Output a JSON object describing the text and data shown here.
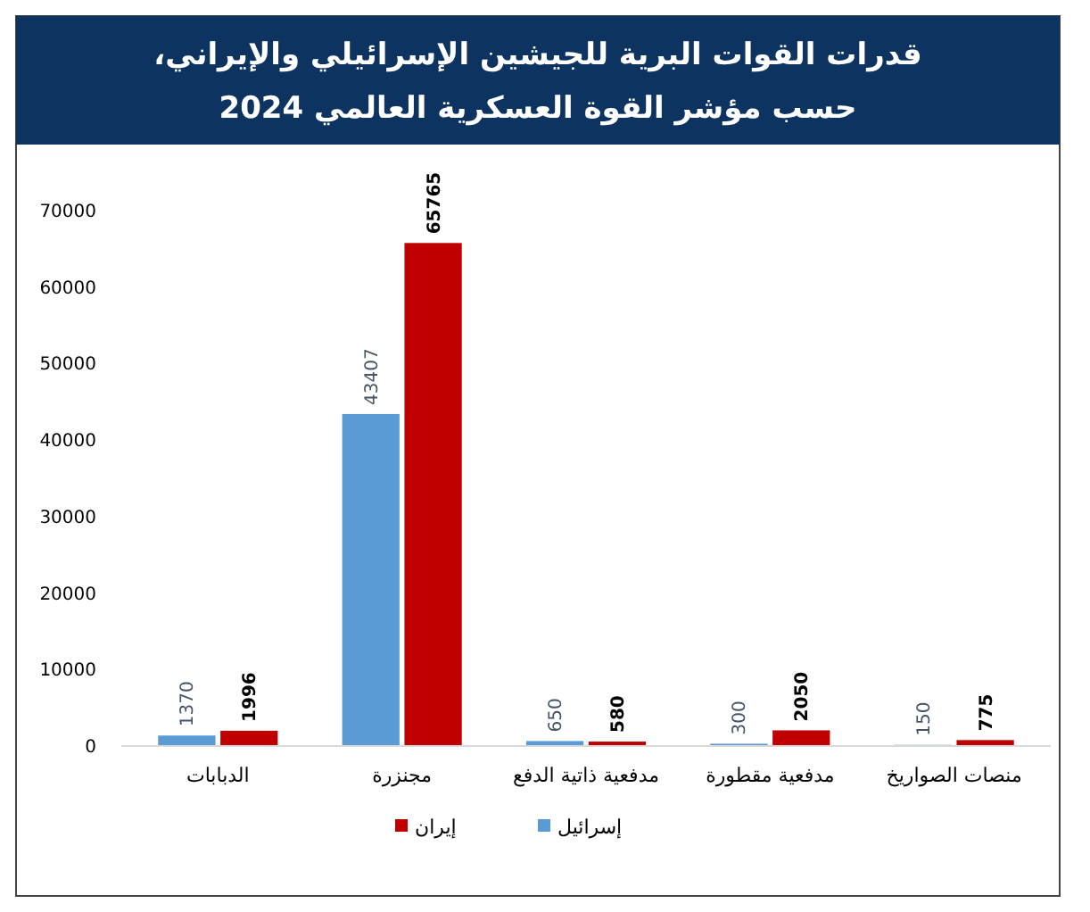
{
  "chart_data": {
    "type": "bar",
    "title": "قدرات القوات البرية للجيشين الإسرائيلي والإيراني،\nحسب مؤشر القوة العسكرية العالمي 2024",
    "categories": [
      "الدبابات",
      "مجنزرة",
      "مدفعية ذاتية الدفع",
      "مدفعية مقطورة",
      "منصات الصواريخ"
    ],
    "series": [
      {
        "name": "إسرائيل",
        "color": "#5b9bd5",
        "values": [
          1370,
          43407,
          650,
          300,
          150
        ]
      },
      {
        "name": "إيران",
        "color": "#c00000",
        "values": [
          1996,
          65765,
          580,
          2050,
          775
        ]
      }
    ],
    "ylim": [
      0,
      70000
    ],
    "yticks": [
      0,
      10000,
      20000,
      30000,
      40000,
      50000,
      60000,
      70000
    ],
    "grid": false,
    "legend": "bottom",
    "data_labels": true
  }
}
